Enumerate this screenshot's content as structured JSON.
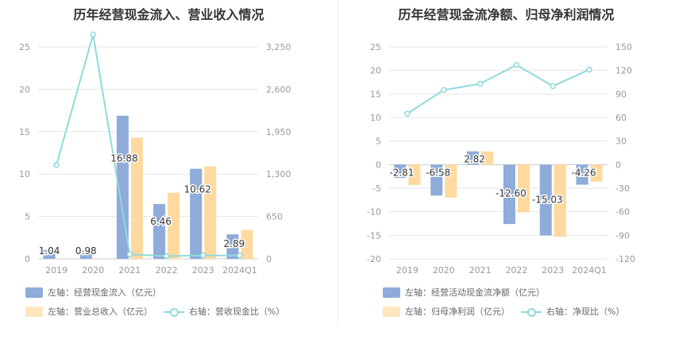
{
  "colors": {
    "blue": "#8eabd9",
    "orange": "#ffd99e",
    "line": "#8fd9dc",
    "grid": "#e6e6e6",
    "axis": "#999999"
  },
  "chart_data": [
    {
      "type": "bar",
      "title": "历年经营现金流入、营业收入情况",
      "categories": [
        "2019",
        "2020",
        "2021",
        "2022",
        "2023",
        "2024Q1"
      ],
      "y_left": {
        "min": 0,
        "max": 25,
        "ticks": [
          0,
          5,
          10,
          15,
          20,
          25
        ]
      },
      "y_right": {
        "min": 0,
        "max": 3250,
        "ticks": [
          "0",
          "650",
          "1,300",
          "1,950",
          "2,600",
          "3,250"
        ],
        "tick_values": [
          0,
          650,
          1300,
          1950,
          2600,
          3250
        ]
      },
      "series": [
        {
          "name": "左轴：经营现金流入（亿元）",
          "kind": "bar",
          "axis": "left",
          "color": "#8eabd9",
          "values": [
            1.04,
            0.98,
            16.88,
            6.46,
            10.62,
            2.89
          ],
          "labels": [
            "1.04",
            "0.98",
            "16.88",
            "6.46",
            "10.62",
            "2.89"
          ]
        },
        {
          "name": "左轴：营业总收入（亿元）",
          "kind": "bar",
          "axis": "left",
          "color": "#ffd99e",
          "values": [
            0,
            0,
            14.3,
            7.8,
            10.9,
            3.4
          ]
        },
        {
          "name": "右轴：营收现金比（%）",
          "kind": "line",
          "axis": "right",
          "color": "#8fd9dc",
          "values": [
            1440,
            3440,
            70,
            42,
            52,
            52
          ]
        }
      ],
      "legend": "bottom-left"
    },
    {
      "type": "bar",
      "title": "历年经营现金流净额、归母净利润情况",
      "categories": [
        "2019",
        "2020",
        "2021",
        "2022",
        "2023",
        "2024Q1"
      ],
      "y_left": {
        "min": -20,
        "max": 25,
        "ticks": [
          -20,
          -15,
          -10,
          -5,
          0,
          5,
          10,
          15,
          20,
          25
        ]
      },
      "y_right": {
        "min": -120,
        "max": 150,
        "ticks": [
          "-120",
          "-90",
          "-60",
          "-30",
          "0",
          "30",
          "60",
          "90",
          "120",
          "150"
        ],
        "tick_values": [
          -120,
          -90,
          -60,
          -30,
          0,
          30,
          60,
          90,
          120,
          150
        ]
      },
      "series": [
        {
          "name": "左轴：经营活动现金流净额（亿元）",
          "kind": "bar",
          "axis": "left",
          "color": "#8eabd9",
          "values": [
            -2.81,
            -6.58,
            2.82,
            -12.6,
            -15.03,
            -4.26
          ],
          "labels": [
            "-2.81",
            "-6.58",
            "2.82",
            "-12.60",
            "-15.03",
            "-4.26"
          ]
        },
        {
          "name": "左轴：归母净利润（亿元）",
          "kind": "bar",
          "axis": "left",
          "color": "#ffd99e",
          "values": [
            -4.3,
            -7.0,
            2.8,
            -10.1,
            -15.3,
            -3.6
          ]
        },
        {
          "name": "右轴：净现比（%）",
          "kind": "line",
          "axis": "right",
          "color": "#8fd9dc",
          "values": [
            65,
            95,
            103,
            127,
            100,
            121
          ]
        }
      ],
      "legend": "bottom-left"
    }
  ]
}
